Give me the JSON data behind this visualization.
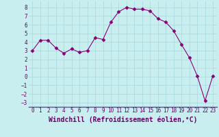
{
  "x": [
    0,
    1,
    2,
    3,
    4,
    5,
    6,
    7,
    8,
    9,
    10,
    11,
    12,
    13,
    14,
    15,
    16,
    17,
    18,
    19,
    20,
    21,
    22,
    23
  ],
  "y": [
    3.0,
    4.2,
    4.2,
    3.3,
    2.7,
    3.2,
    2.8,
    3.0,
    4.5,
    4.3,
    6.3,
    7.5,
    8.0,
    7.8,
    7.8,
    7.6,
    6.7,
    6.3,
    5.3,
    3.7,
    2.2,
    0.1,
    -2.8,
    0.1
  ],
  "line_color": "#880077",
  "marker": "D",
  "marker_size": 2.5,
  "background_color": "#c8eef0",
  "grid_color": "#a8d8dc",
  "xlabel": "Windchill (Refroidissement éolien,°C)",
  "ylim": [
    -3.5,
    8.7
  ],
  "xlim": [
    -0.5,
    23.5
  ],
  "yticks": [
    -3,
    -2,
    -1,
    0,
    1,
    2,
    3,
    4,
    5,
    6,
    7,
    8
  ],
  "xticks": [
    0,
    1,
    2,
    3,
    4,
    5,
    6,
    7,
    8,
    9,
    10,
    11,
    12,
    13,
    14,
    15,
    16,
    17,
    18,
    19,
    20,
    21,
    22,
    23
  ],
  "tick_fontsize": 5.5,
  "xlabel_fontsize": 7.0,
  "label_color": "#660066",
  "spine_color": "#660066",
  "bottom_spine_color": "#555588"
}
